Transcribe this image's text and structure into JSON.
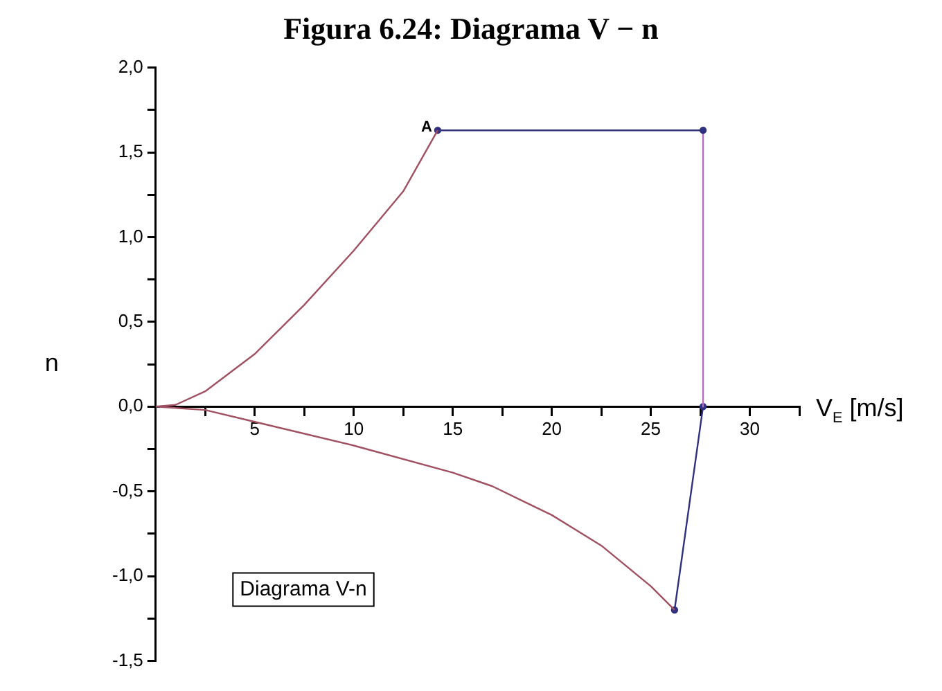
{
  "chart_data": {
    "type": "line",
    "title": "Figura 6.24: Diagrama V − n",
    "xlabel": "V$_{E}$ [m/s]",
    "ylabel": "n",
    "xlim": [
      0,
      32.5
    ],
    "ylim": [
      -1.5,
      2.0
    ],
    "xticks": [
      {
        "value": 2.5,
        "label": null
      },
      5,
      {
        "value": 7.5,
        "label": null
      },
      10,
      {
        "value": 12.5,
        "label": null
      },
      15,
      {
        "value": 17.5,
        "label": null
      },
      20,
      {
        "value": 22.5,
        "label": null
      },
      25,
      {
        "value": 27.5,
        "label": null
      },
      30,
      {
        "value": 32.5,
        "label": null
      }
    ],
    "yticks": [
      {
        "value": -1.5,
        "label": "-1,5"
      },
      {
        "value": -1.25,
        "label": null
      },
      {
        "value": -1.0,
        "label": "-1,0"
      },
      {
        "value": -0.75,
        "label": null
      },
      {
        "value": -0.5,
        "label": "-0,5"
      },
      {
        "value": -0.25,
        "label": null
      },
      {
        "value": 0,
        "label": "0,0"
      },
      {
        "value": 0.25,
        "label": null
      },
      {
        "value": 0.5,
        "label": "0,5"
      },
      {
        "value": 0.75,
        "label": null
      },
      {
        "value": 1.0,
        "label": "1,0"
      },
      {
        "value": 1.25,
        "label": null
      },
      {
        "value": 1.5,
        "label": "1,5"
      },
      {
        "value": 1.75,
        "label": null
      },
      {
        "value": 2.0,
        "label": "2,0"
      }
    ],
    "grid": false,
    "legend": false,
    "series": [
      {
        "color": "#a05060",
        "x": [
          0,
          1,
          2.5,
          5,
          7.5,
          10,
          12.5,
          14.24
        ],
        "values": [
          0,
          0.01,
          0.09,
          0.31,
          0.6,
          0.92,
          1.27,
          1.63
        ]
      },
      {
        "color": "#303080",
        "marker": "circle",
        "x": [
          14.24,
          27.64
        ],
        "values": [
          1.63,
          1.63
        ]
      },
      {
        "color": "#b070c0",
        "x": [
          27.64,
          27.64
        ],
        "values": [
          1.63,
          0
        ]
      },
      {
        "color": "#a05060",
        "x": [
          0,
          2.5,
          5,
          10,
          15,
          17,
          20,
          22.5,
          25,
          26.2
        ],
        "values": [
          0,
          -0.02,
          -0.09,
          -0.23,
          -0.39,
          -0.47,
          -0.64,
          -0.82,
          -1.06,
          -1.2
        ]
      },
      {
        "color": "#303080",
        "marker": "circle",
        "x": [
          26.2,
          27.64
        ],
        "values": [
          -1.2,
          0
        ]
      }
    ],
    "annotations": [
      {
        "text": "A",
        "x": 14.24,
        "y": 1.63
      },
      "Diagrama V-n"
    ]
  }
}
